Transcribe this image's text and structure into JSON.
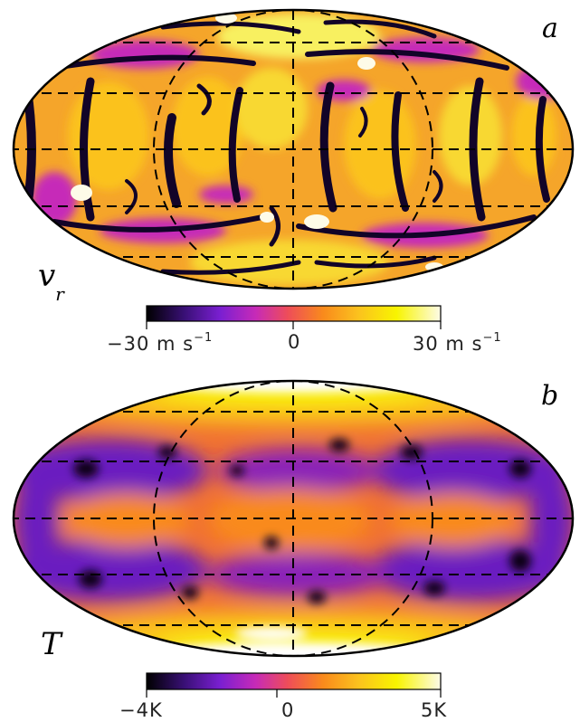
{
  "panels": [
    {
      "id": "a",
      "letter": "a",
      "variable_symbol": "v",
      "variable_subscript": "r",
      "colorbar": {
        "min_label": "−30 m s",
        "min_exponent": "−1",
        "zero_label": "0",
        "max_label": "30 m s",
        "max_exponent": "−1"
      }
    },
    {
      "id": "b",
      "letter": "b",
      "variable_symbol": "T",
      "colorbar": {
        "min_label": "−4K",
        "zero_label": "0",
        "max_label": "5K"
      }
    }
  ],
  "colormap": [
    "#000000",
    "#3a1077",
    "#7a1fd1",
    "#c62ab8",
    "#ee4d59",
    "#f98a1c",
    "#fbc21e",
    "#f8f400",
    "#fdfbe8"
  ]
}
